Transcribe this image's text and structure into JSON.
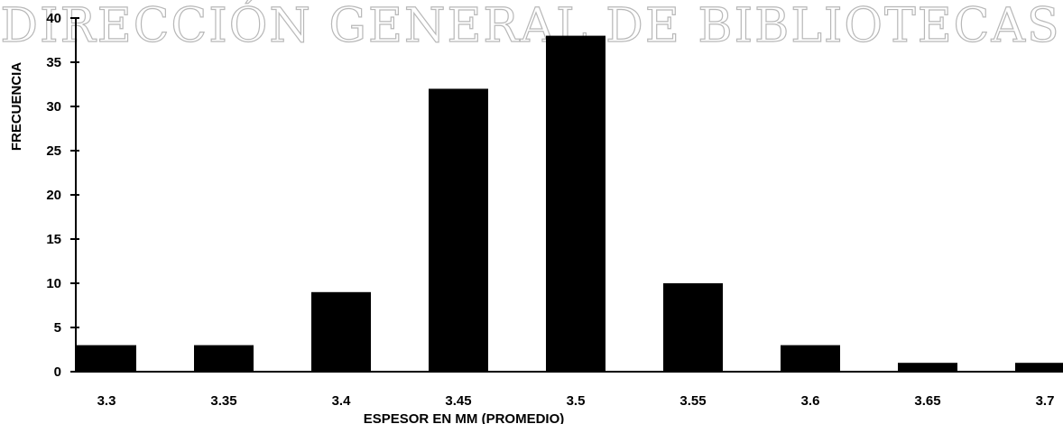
{
  "watermark": "DIRECCIÓN GENERAL DE BIBLIOTECAS",
  "chart_data": {
    "type": "bar",
    "title": "",
    "xlabel": "ESPESOR EN MM (PROMEDIO)",
    "ylabel": "FRECUENCIA",
    "categories": [
      "3.3",
      "3.35",
      "3.4",
      "3.45",
      "3.5",
      "3.55",
      "3.6",
      "3.65",
      "3.7"
    ],
    "values": [
      3,
      3,
      9,
      32,
      38,
      10,
      3,
      1,
      1
    ],
    "ylim": [
      0,
      40
    ],
    "yticks": [
      0,
      5,
      10,
      15,
      20,
      25,
      30,
      35,
      40
    ],
    "grid": false,
    "legend": "none",
    "bar_color": "#000000"
  }
}
